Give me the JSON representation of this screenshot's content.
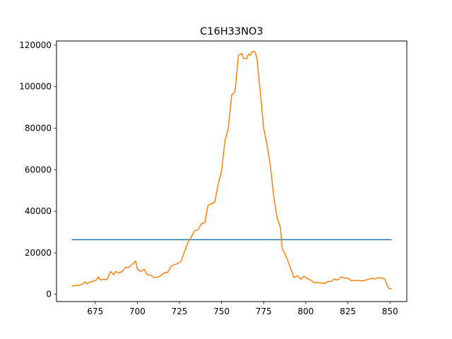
{
  "chart_data": {
    "type": "line",
    "title": "C16H33NO3",
    "xlabel": "",
    "ylabel": "",
    "xlim": [
      652,
      860
    ],
    "ylim": [
      -3500,
      122000
    ],
    "x_ticks": [
      675,
      700,
      725,
      750,
      775,
      800,
      825,
      850
    ],
    "y_ticks": [
      0,
      20000,
      40000,
      60000,
      80000,
      100000,
      120000
    ],
    "grid": false,
    "series": [
      {
        "color": "#1f77b4",
        "x": [
          661,
          851
        ],
        "y": [
          26300,
          26300
        ]
      },
      {
        "color": "#ff7f0e",
        "x": [
          661,
          663,
          665,
          667,
          669,
          670,
          671,
          673,
          675,
          677,
          678,
          680,
          682,
          684,
          686,
          687,
          689,
          691,
          693,
          695,
          697,
          699,
          700,
          702,
          704,
          706,
          708,
          710,
          712,
          714,
          716,
          718,
          720,
          722,
          724,
          726,
          728,
          730,
          732,
          734,
          736,
          738,
          740,
          742,
          744,
          746,
          748,
          750,
          752,
          754,
          756,
          758,
          760,
          762,
          763,
          765,
          766,
          767,
          768,
          769,
          770,
          771,
          773,
          775,
          777,
          779,
          781,
          783,
          785,
          786,
          787,
          789,
          791,
          793,
          795,
          797,
          799,
          801,
          803,
          805,
          807,
          809,
          811,
          813,
          815,
          817,
          819,
          821,
          823,
          825,
          827,
          829,
          831,
          833,
          835,
          837,
          839,
          841,
          843,
          845,
          847,
          849,
          851
        ],
        "y": [
          3800,
          4300,
          4300,
          4700,
          6000,
          5000,
          5500,
          6200,
          6500,
          8400,
          6900,
          7300,
          7000,
          11000,
          9400,
          11000,
          10200,
          11000,
          13000,
          13000,
          14500,
          16000,
          12000,
          11000,
          12000,
          9500,
          9200,
          8000,
          8300,
          8900,
          10500,
          10500,
          13500,
          14300,
          14800,
          16000,
          20500,
          25000,
          27500,
          30700,
          31000,
          34000,
          34500,
          43000,
          43500,
          44500,
          53000,
          59500,
          73500,
          80000,
          96000,
          97500,
          115000,
          116000,
          113500,
          113500,
          115700,
          115000,
          116700,
          117000,
          116500,
          113500,
          97500,
          80000,
          72000,
          62000,
          47000,
          37000,
          32000,
          22000,
          20500,
          17000,
          12500,
          8000,
          9000,
          7300,
          8700,
          7500,
          6800,
          5600,
          5600,
          5500,
          5100,
          6200,
          6200,
          7400,
          6800,
          8400,
          7800,
          7800,
          6600,
          6600,
          6700,
          6400,
          6700,
          7200,
          7700,
          7400,
          8000,
          7900,
          7200,
          3000,
          2500
        ]
      }
    ]
  }
}
